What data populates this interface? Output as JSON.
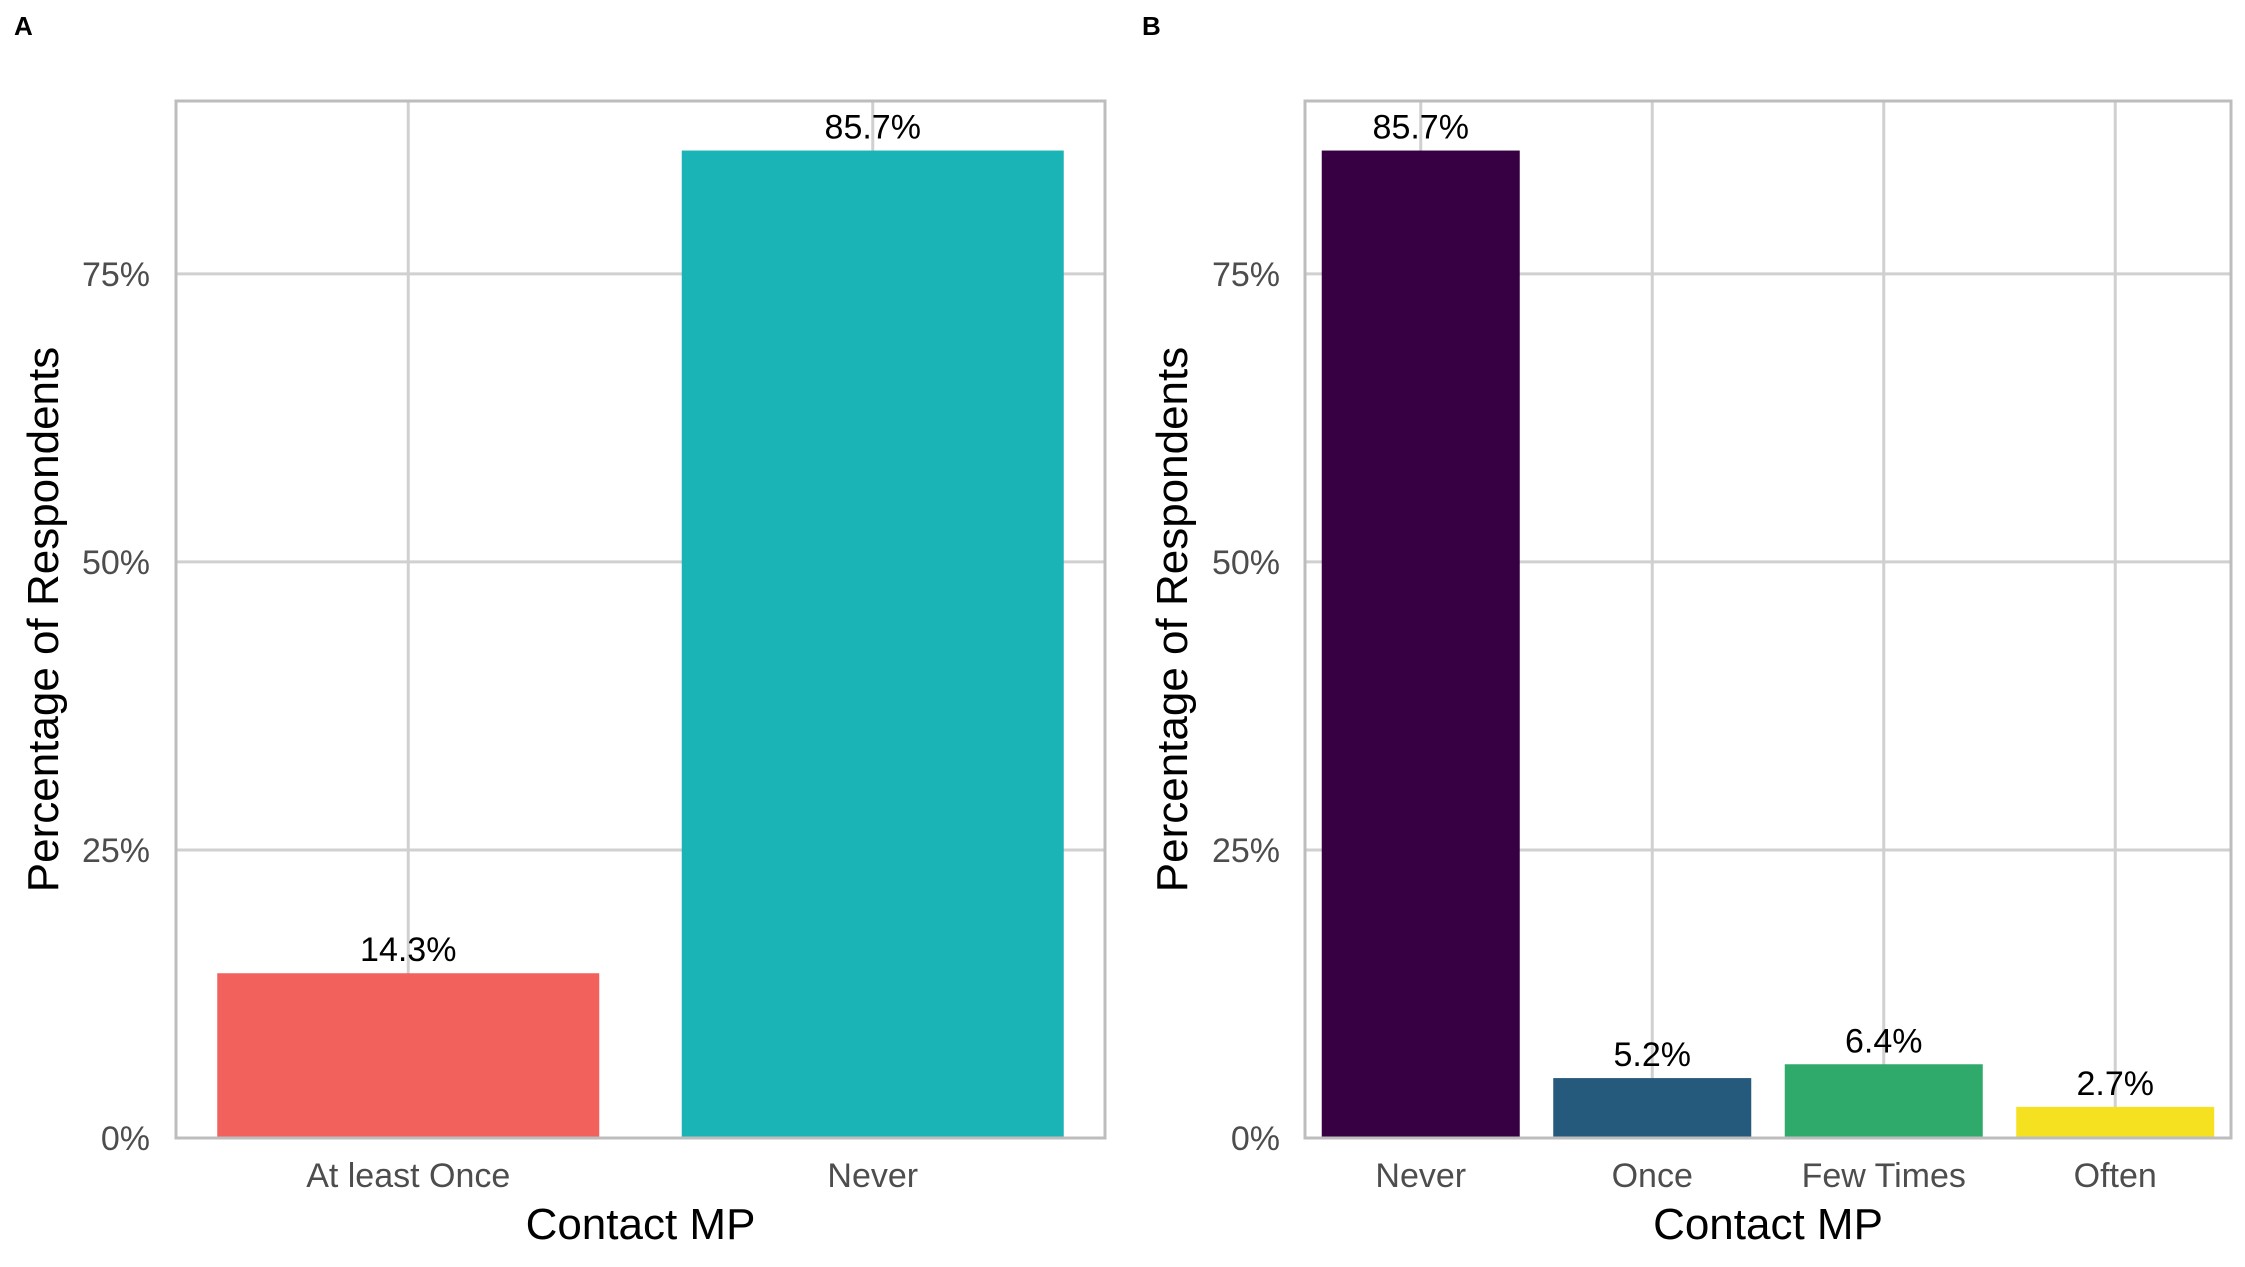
{
  "chart_data": [
    {
      "panel": "A",
      "type": "bar",
      "xlabel": "Contact MP",
      "ylabel": "Percentage of Respondents",
      "categories": [
        "At least Once",
        "Never"
      ],
      "values": [
        14.3,
        85.7
      ],
      "data_labels": [
        "14.3%",
        "85.7%"
      ],
      "colors": [
        "#F2615C",
        "#1AB3B6"
      ],
      "ylim": [
        0,
        90
      ],
      "yticks": [
        0,
        25,
        50,
        75
      ],
      "ytick_labels": [
        "0%",
        "25%",
        "50%",
        "75%"
      ],
      "grid": true,
      "legend": "none"
    },
    {
      "panel": "B",
      "type": "bar",
      "xlabel": "Contact MP",
      "ylabel": "Percentage of Respondents",
      "categories": [
        "Never",
        "Once",
        "Few Times",
        "Often"
      ],
      "values": [
        85.7,
        5.2,
        6.4,
        2.7
      ],
      "data_labels": [
        "85.7%",
        "5.2%",
        "6.4%",
        "2.7%"
      ],
      "colors": [
        "#360043",
        "#255A7D",
        "#30AA6A",
        "#F6E120"
      ],
      "ylim": [
        0,
        90
      ],
      "yticks": [
        0,
        25,
        50,
        75
      ],
      "ytick_labels": [
        "0%",
        "25%",
        "50%",
        "75%"
      ],
      "grid": true,
      "legend": "none"
    }
  ]
}
